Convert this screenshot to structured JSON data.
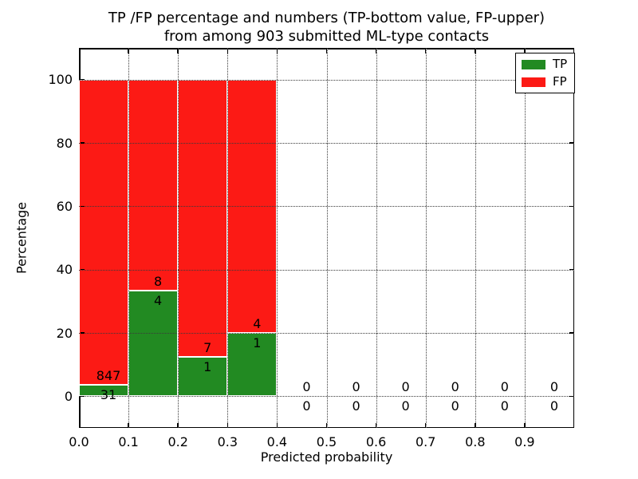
{
  "title": {
    "line1": "TP /FP percentage and numbers (TP-bottom value, FP-upper)",
    "line2": "from among 903 submitted ML-type contacts"
  },
  "axes": {
    "xlabel": "Predicted probability",
    "ylabel": "Percentage",
    "x_tick_labels": [
      "0.0",
      "0.1",
      "0.2",
      "0.3",
      "0.4",
      "0.5",
      "0.6",
      "0.7",
      "0.8",
      "0.9"
    ],
    "x_tick_values": [
      0,
      0.1,
      0.2,
      0.3,
      0.4,
      0.5,
      0.6,
      0.7,
      0.8,
      0.9
    ],
    "y_tick_labels": [
      "0",
      "20",
      "40",
      "60",
      "80",
      "100"
    ],
    "y_tick_values": [
      0,
      20,
      40,
      60,
      80,
      100
    ],
    "xlim": [
      0,
      1
    ],
    "ylim": [
      -10,
      110
    ],
    "grid_style": "dotted"
  },
  "legend": {
    "items": [
      {
        "label": "TP",
        "color": "#228a22"
      },
      {
        "label": "FP",
        "color": "#fc1a15"
      }
    ]
  },
  "chart_data": {
    "type": "bar",
    "stacked": true,
    "title": "TP /FP percentage and numbers (TP-bottom value, FP-upper) from among 903 submitted ML-type contacts",
    "xlabel": "Predicted probability",
    "ylabel": "Percentage",
    "total_contacts": 903,
    "bin_width": 0.1,
    "colors": {
      "tp": "#228a22",
      "fp": "#fc1a15",
      "bar_edge": "#ffffff"
    },
    "bars": [
      {
        "bin_start": 0.0,
        "bin_end": 0.1,
        "tp_count": 31,
        "fp_count": 847,
        "tp_percent": 3.53,
        "fp_percent": 96.47
      },
      {
        "bin_start": 0.1,
        "bin_end": 0.2,
        "tp_count": 4,
        "fp_count": 8,
        "tp_percent": 33.33,
        "fp_percent": 66.67
      },
      {
        "bin_start": 0.2,
        "bin_end": 0.3,
        "tp_count": 1,
        "fp_count": 7,
        "tp_percent": 12.5,
        "fp_percent": 87.5
      },
      {
        "bin_start": 0.3,
        "bin_end": 0.4,
        "tp_count": 1,
        "fp_count": 4,
        "tp_percent": 20.0,
        "fp_percent": 80.0
      },
      {
        "bin_start": 0.4,
        "bin_end": 0.5,
        "tp_count": 0,
        "fp_count": 0,
        "tp_percent": 0,
        "fp_percent": 0
      },
      {
        "bin_start": 0.5,
        "bin_end": 0.6,
        "tp_count": 0,
        "fp_count": 0,
        "tp_percent": 0,
        "fp_percent": 0
      },
      {
        "bin_start": 0.6,
        "bin_end": 0.7,
        "tp_count": 0,
        "fp_count": 0,
        "tp_percent": 0,
        "fp_percent": 0
      },
      {
        "bin_start": 0.7,
        "bin_end": 0.8,
        "tp_count": 0,
        "fp_count": 0,
        "tp_percent": 0,
        "fp_percent": 0
      },
      {
        "bin_start": 0.8,
        "bin_end": 0.9,
        "tp_count": 0,
        "fp_count": 0,
        "tp_percent": 0,
        "fp_percent": 0
      },
      {
        "bin_start": 0.9,
        "bin_end": 1.0,
        "tp_count": 0,
        "fp_count": 0,
        "tp_percent": 0,
        "fp_percent": 0
      }
    ]
  }
}
